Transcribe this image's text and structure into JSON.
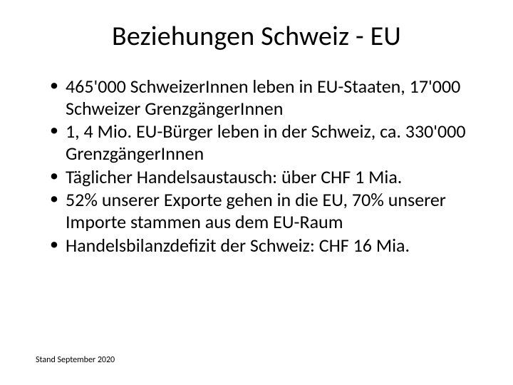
{
  "title": "Beziehungen Schweiz - EU",
  "bullets": [
    "465'000 SchweizerInnen leben in EU-Staaten, 17'000 Schweizer GrenzgängerInnen",
    "1, 4 Mio. EU-Bürger leben in der Schweiz, ca. 330'000 GrenzgängerInnen",
    "Täglicher Handelsaustausch: über CHF 1 Mia.",
    "52% unserer Exporte gehen in die EU, 70% unserer Importe stammen aus dem EU-Raum",
    "Handelsbilanzdefizit der Schweiz: CHF 16 Mia."
  ],
  "footnote": "Stand September 2020",
  "colors": {
    "background": "#ffffff",
    "text": "#000000"
  },
  "typography": {
    "title_fontsize": 38,
    "bullet_fontsize": 26,
    "footnote_fontsize": 12,
    "font_family": "Calibri"
  }
}
